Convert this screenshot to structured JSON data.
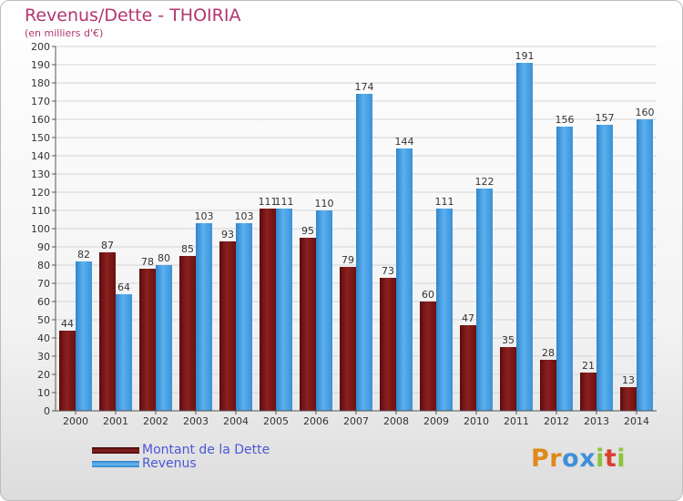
{
  "title": "Revenus/Dette - THOIRIA",
  "subtitle": "(en milliers d'€)",
  "legend": {
    "dette": "Montant de la Dette",
    "revenus": "Revenus"
  },
  "logo": {
    "letters": [
      "P",
      "r",
      "o",
      "x",
      "i",
      "t",
      "i"
    ],
    "colors": [
      "#e0891b",
      "#e0891b",
      "#3f8fd8",
      "#3f8fd8",
      "#8ac43f",
      "#d7412e",
      "#8ac43f"
    ]
  },
  "colors": {
    "dette": "#7b1414",
    "revenus": "#3f9be0"
  },
  "chart_data": {
    "type": "bar",
    "categories": [
      "2000",
      "2001",
      "2002",
      "2003",
      "2004",
      "2005",
      "2006",
      "2007",
      "2008",
      "2009",
      "2010",
      "2011",
      "2012",
      "2013",
      "2014"
    ],
    "series": [
      {
        "name": "Montant de la Dette",
        "values": [
          44,
          87,
          78,
          85,
          93,
          111,
          95,
          79,
          73,
          60,
          47,
          35,
          28,
          21,
          13
        ]
      },
      {
        "name": "Revenus",
        "values": [
          82,
          64,
          80,
          103,
          103,
          111,
          110,
          174,
          144,
          111,
          122,
          191,
          156,
          157,
          160
        ]
      }
    ],
    "yticks": [
      0,
      10,
      20,
      30,
      40,
      50,
      60,
      70,
      80,
      90,
      100,
      110,
      120,
      130,
      140,
      150,
      160,
      170,
      180,
      190,
      200
    ],
    "ylim": [
      0,
      200
    ],
    "grid": true,
    "legend_position": "bottom-left"
  }
}
